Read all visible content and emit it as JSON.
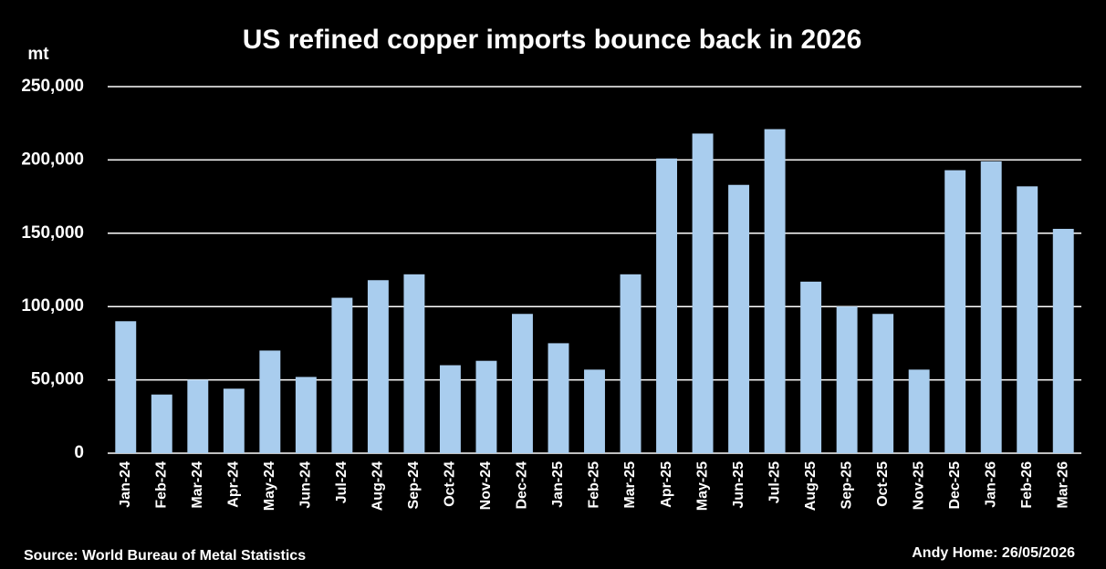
{
  "chart_data": {
    "type": "bar",
    "title": "US refined copper imports bounce back in 2026",
    "y_label": "mt",
    "source": "Source: World Bureau of Metal Statistics",
    "credit": "Andy Home: 26/05/2026",
    "categories": [
      "Jan-24",
      "Feb-24",
      "Mar-24",
      "Apr-24",
      "May-24",
      "Jun-24",
      "Jul-24",
      "Aug-24",
      "Sep-24",
      "Oct-24",
      "Nov-24",
      "Dec-24",
      "Jan-25",
      "Feb-25",
      "Mar-25",
      "Apr-25",
      "May-25",
      "Jun-25",
      "Jul-25",
      "Aug-25",
      "Sep-25",
      "Oct-25",
      "Nov-25",
      "Dec-25",
      "Jan-26",
      "Feb-26",
      "Mar-26"
    ],
    "values": [
      90000,
      40000,
      50000,
      44000,
      70000,
      52000,
      106000,
      118000,
      122000,
      60000,
      63000,
      95000,
      75000,
      57000,
      122000,
      201000,
      218000,
      183000,
      221000,
      117000,
      100000,
      95000,
      57000,
      193000,
      199000,
      182000,
      153000
    ],
    "color": "#a9cdee",
    "ylim": [
      0,
      250000
    ],
    "yticks": [
      0,
      {
        "value": 50000,
        "label": "50,000"
      },
      {
        "value": 100000,
        "label": "100,000"
      },
      {
        "value": 150000,
        "label": "150,000"
      },
      {
        "value": 200000,
        "label": "200,000"
      },
      {
        "value": 250000,
        "label": "250,000"
      }
    ],
    "grid": true
  }
}
